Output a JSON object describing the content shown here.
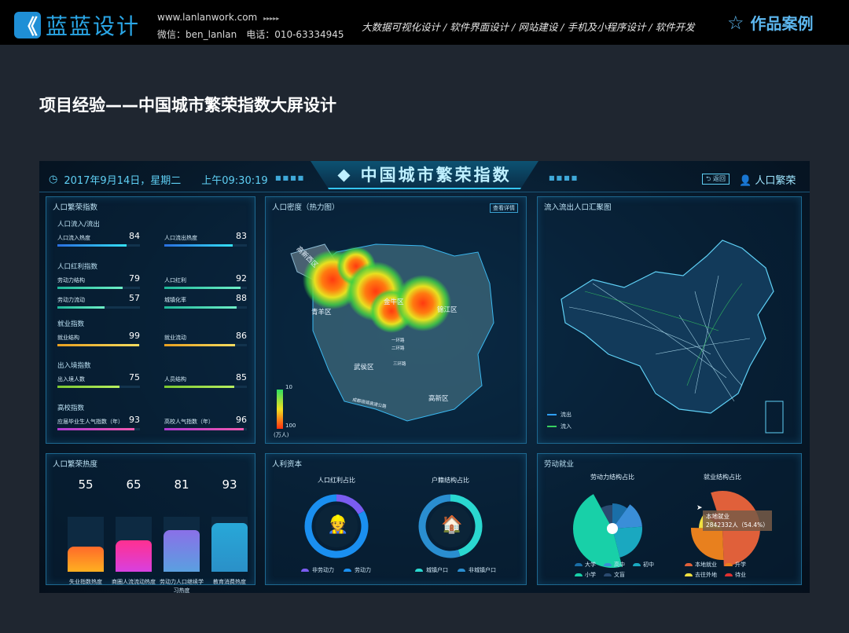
{
  "site": {
    "brand": "蓝蓝设计",
    "url": "www.lanlanwork.com",
    "dots": "▸▸▸▸▸",
    "contact": "微信：ben_lanlan　电话：010-63334945",
    "services": "大数据可视化设计 / 软件界面设计 / 网站建设 / 手机及小程序设计 / 软件开发",
    "cases": "作品案例"
  },
  "page_title": "项目经验——中国城市繁荣指数大屏设计",
  "dashboard": {
    "date": "2017年9月14日，星期二",
    "time": "上午09:30:19",
    "title": "中国城市繁荣指数",
    "back": "返回",
    "user": "人口繁荣",
    "colors": {
      "accent": "#35c6f4",
      "panel_border": "#1d6890"
    },
    "prosperity": {
      "title": "人口繁荣指数",
      "groups": [
        {
          "name": "人口流入/流出",
          "color": [
            "#2a6fe0",
            "#34e0f5"
          ],
          "items": [
            {
              "label": "人口流入热度",
              "value": 84
            },
            {
              "label": "人口流出热度",
              "value": 83
            }
          ]
        },
        {
          "name": "人口红利指数",
          "color": [
            "#1fb89a",
            "#6ef0c8"
          ],
          "items": [
            {
              "label": "劳动力结构",
              "value": 79
            },
            {
              "label": "人口红利",
              "value": 92
            },
            {
              "label": "劳动力流动",
              "value": 57
            },
            {
              "label": "城镇化率",
              "value": 88
            }
          ]
        },
        {
          "name": "就业指数",
          "color": [
            "#e8a020",
            "#f5dc60"
          ],
          "items": [
            {
              "label": "就业结构",
              "value": 99
            },
            {
              "label": "就业流动",
              "value": 86
            }
          ]
        },
        {
          "name": "出入境指数",
          "color": [
            "#7cc830",
            "#b8f060"
          ],
          "items": [
            {
              "label": "出入境人数",
              "value": 75
            },
            {
              "label": "人员结构",
              "value": 85
            }
          ]
        },
        {
          "name": "高校指数",
          "color": [
            "#b03ad0",
            "#f05ab0"
          ],
          "items": [
            {
              "label": "应届毕业生人气指数（年）",
              "value": 93
            },
            {
              "label": "高校人气指数（年）",
              "value": 96
            }
          ]
        }
      ]
    },
    "heatmap": {
      "title": "人口密度（热力图）",
      "detail": "查看详情",
      "districts": [
        "高新西区",
        "青羊区",
        "金牛区",
        "锦江区",
        "武侯区",
        "高新区",
        "一环路",
        "二环路",
        "三环路",
        "成都绕城高速公路"
      ],
      "scale_min": "10",
      "scale_max": "100",
      "unit": "(万人)"
    },
    "flow": {
      "title": "流入流出人口汇聚图",
      "legend": [
        {
          "label": "流出",
          "color": "#2fa0ff"
        },
        {
          "label": "流入",
          "color": "#38d060"
        }
      ]
    },
    "heat": {
      "title": "人口繁荣热度",
      "items": [
        {
          "label": "失业指数热度",
          "value": 55,
          "color": [
            "#ffb020",
            "#ff6a2a"
          ]
        },
        {
          "label": "商圈人流流动热度",
          "value": 65,
          "color": [
            "#d840e0",
            "#ff3090"
          ]
        },
        {
          "label": "劳动力人口继续学习热度",
          "value": 81,
          "color": [
            "#5aa0e0",
            "#8a70e8"
          ]
        },
        {
          "label": "教育消费热度",
          "value": 93,
          "color": [
            "#2a90c8",
            "#28a8d8"
          ]
        }
      ]
    },
    "capital": {
      "title": "人利资本",
      "charts": [
        {
          "title": "人口红利占比",
          "icon": "worker-icon",
          "segments": [
            {
              "label": "非劳动力",
              "share": 0.17,
              "color": "#7a5cf0"
            },
            {
              "label": "劳动力",
              "share": 0.83,
              "color": "#1a8ff0"
            }
          ]
        },
        {
          "title": "户籍结构占比",
          "icon": "house-icon",
          "segments": [
            {
              "label": "城镇户口",
              "share": 0.45,
              "color": "#2ad8d0"
            },
            {
              "label": "非城镇户口",
              "share": 0.55,
              "color": "#2a8ed0"
            }
          ]
        }
      ]
    },
    "employment": {
      "title": "劳动就业",
      "charts": [
        {
          "title": "劳动力结构占比",
          "segments": [
            {
              "label": "大学",
              "share": 0.1,
              "color": "#1a6fa8"
            },
            {
              "label": "高中",
              "share": 0.14,
              "color": "#3a8ed8"
            },
            {
              "label": "初中",
              "share": 0.22,
              "color": "#1aa8c0"
            },
            {
              "label": "小学",
              "share": 0.46,
              "color": "#18d0a8"
            },
            {
              "label": "文盲",
              "share": 0.08,
              "color": "#2a4a70"
            }
          ]
        },
        {
          "title": "就业结构占比",
          "tooltip_title": "本地就业",
          "tooltip_value": "2842332人（54.4%）",
          "segments": [
            {
              "label": "本地就业",
              "share": 0.544,
              "color": "#e0603a"
            },
            {
              "label": "升学",
              "share": 0.26,
              "color": "#e8801e"
            },
            {
              "label": "去往外地",
              "share": 0.1,
              "color": "#f0e040"
            },
            {
              "label": "待业",
              "share": 0.096,
              "color": "#e03030"
            }
          ]
        }
      ]
    }
  }
}
